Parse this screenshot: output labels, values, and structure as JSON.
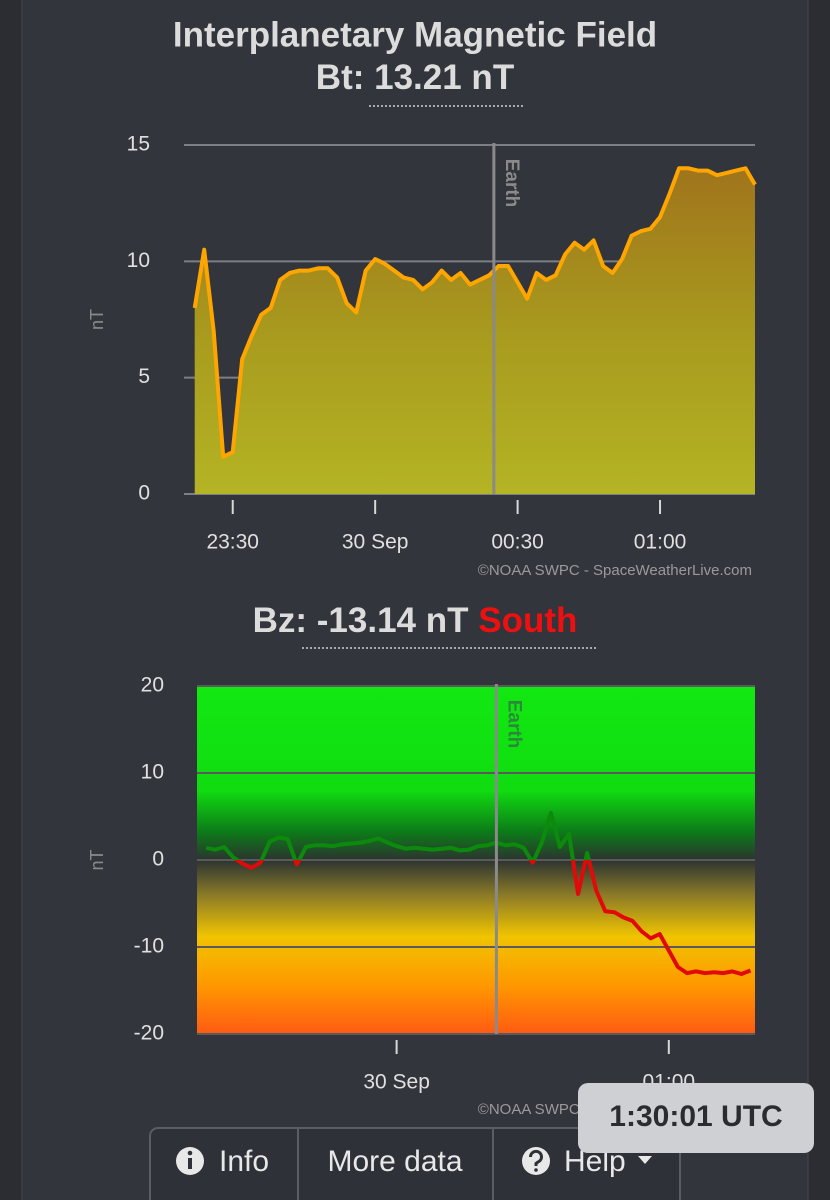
{
  "chart_data": [
    {
      "type": "area",
      "title": "Interplanetary Magnetic Field",
      "readout_label": "Bt:",
      "readout_value": "13.21 nT",
      "y_label": "nT",
      "credit": "©NOAA SWPC - SpaceWeatherLive.com",
      "marker": {
        "x": "00:25",
        "label": "Earth"
      },
      "x": [
        "23:22",
        "23:24",
        "23:26",
        "23:28",
        "23:30",
        "23:32",
        "23:34",
        "23:36",
        "23:38",
        "23:40",
        "23:42",
        "23:44",
        "23:46",
        "23:48",
        "23:50",
        "23:52",
        "23:54",
        "23:56",
        "23:58",
        "00:00",
        "00:02",
        "00:04",
        "00:06",
        "00:08",
        "00:10",
        "00:12",
        "00:14",
        "00:16",
        "00:18",
        "00:20",
        "00:22",
        "00:24",
        "00:26",
        "00:28",
        "00:30",
        "00:32",
        "00:34",
        "00:36",
        "00:38",
        "00:40",
        "00:42",
        "00:44",
        "00:46",
        "00:48",
        "00:50",
        "00:52",
        "00:54",
        "00:56",
        "00:58",
        "01:00",
        "01:02",
        "01:04",
        "01:06",
        "01:08",
        "01:10",
        "01:12",
        "01:14",
        "01:16",
        "01:18",
        "01:20"
      ],
      "values": [
        8.0,
        10.5,
        7.0,
        1.6,
        1.8,
        5.8,
        6.8,
        7.7,
        8.0,
        9.2,
        9.5,
        9.6,
        9.6,
        9.7,
        9.7,
        9.3,
        8.2,
        7.8,
        9.6,
        10.1,
        9.9,
        9.6,
        9.3,
        9.2,
        8.8,
        9.1,
        9.6,
        9.2,
        9.5,
        9.0,
        9.2,
        9.4,
        9.8,
        9.8,
        9.1,
        8.4,
        9.5,
        9.2,
        9.4,
        10.3,
        10.8,
        10.5,
        10.9,
        9.8,
        9.5,
        10.1,
        11.1,
        11.3,
        11.4,
        11.9,
        12.9,
        14.0,
        14.0,
        13.9,
        13.9,
        13.7,
        13.8,
        13.9,
        14.0,
        13.3
      ],
      "color": "#ffa500",
      "xlim": [
        "23:21",
        "01:20"
      ],
      "xticks": [
        "23:30",
        {
          "value": "00:00",
          "label": "30 Sep"
        },
        "00:30",
        "01:00"
      ],
      "ylim": [
        0,
        15
      ],
      "yticks": [
        0,
        5,
        10,
        15
      ],
      "grid": true
    },
    {
      "type": "line",
      "readout_label": "Bz:",
      "readout_value": "-13.14 nT",
      "readout_direction": "South",
      "y_label": "nT",
      "credit": "©NOAA SWPC - SpaceWeatherLive.com",
      "marker": {
        "x": "00:22",
        "label": "Earth"
      },
      "x": [
        "23:18",
        "23:20",
        "23:22",
        "23:24",
        "23:26",
        "23:28",
        "23:30",
        "23:32",
        "23:34",
        "23:36",
        "23:38",
        "23:40",
        "23:42",
        "23:44",
        "23:46",
        "23:48",
        "23:50",
        "23:52",
        "23:54",
        "23:56",
        "23:58",
        "00:00",
        "00:02",
        "00:04",
        "00:06",
        "00:08",
        "00:10",
        "00:12",
        "00:14",
        "00:16",
        "00:18",
        "00:20",
        "00:22",
        "00:24",
        "00:26",
        "00:28",
        "00:30",
        "00:32",
        "00:34",
        "00:36",
        "00:38",
        "00:40",
        "00:42",
        "00:44",
        "00:46",
        "00:48",
        "00:50",
        "00:52",
        "00:54",
        "00:56",
        "00:58",
        "01:00",
        "01:02",
        "01:04",
        "01:06",
        "01:08",
        "01:10",
        "01:12",
        "01:14",
        "01:16",
        "01:18"
      ],
      "values": [
        1.4,
        1.2,
        1.5,
        0.3,
        -0.4,
        -0.9,
        -0.3,
        2.1,
        2.6,
        2.4,
        -0.5,
        1.5,
        1.7,
        1.7,
        1.6,
        1.8,
        1.9,
        2.0,
        2.2,
        2.5,
        2.0,
        1.6,
        1.3,
        1.4,
        1.3,
        1.2,
        1.3,
        1.4,
        1.1,
        1.2,
        1.6,
        1.7,
        2.0,
        1.7,
        1.8,
        1.4,
        -0.3,
        2.0,
        5.4,
        1.5,
        3.0,
        -3.9,
        0.8,
        -3.5,
        -5.9,
        -6.0,
        -6.6,
        -7.0,
        -8.2,
        -9.0,
        -8.5,
        -10.4,
        -12.3,
        -13.0,
        -12.8,
        -13.0,
        -12.9,
        -13.0,
        -12.8,
        -13.1,
        -12.7
      ],
      "color_above": "#0b8a0b",
      "color_below": "#e00a0a",
      "xlim": [
        "23:16",
        "01:19"
      ],
      "xticks": [
        {
          "value": "00:00",
          "label": "30 Sep"
        },
        "01:00"
      ],
      "ylim": [
        -20,
        20
      ],
      "yticks": [
        -20,
        -10,
        0,
        10,
        20
      ],
      "grid": true
    }
  ],
  "buttons": [
    "Info",
    "More data",
    "Help"
  ],
  "clock": "1:30:01 UTC"
}
